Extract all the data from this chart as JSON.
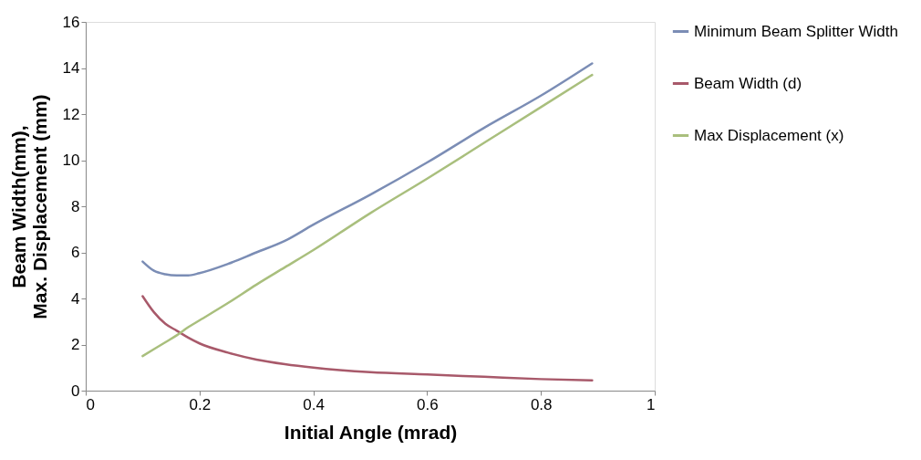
{
  "chart_data": {
    "type": "line",
    "xlabel": "Initial Angle (mrad)",
    "ylabel": "Beam Width(mm),\nMax. Displacement (mm)",
    "x": [
      0.1,
      0.12,
      0.14,
      0.16,
      0.18,
      0.2,
      0.25,
      0.3,
      0.35,
      0.4,
      0.5,
      0.6,
      0.7,
      0.8,
      0.89
    ],
    "series": [
      {
        "name": "Minimum Beam Splitter Width",
        "color": "#7b8db5",
        "values": [
          5.6,
          5.2,
          5.05,
          5.0,
          5.0,
          5.1,
          5.5,
          6.0,
          6.5,
          7.2,
          8.5,
          9.9,
          11.4,
          12.8,
          14.2
        ]
      },
      {
        "name": "Beam Width (d)",
        "color": "#a8596a",
        "values": [
          4.1,
          3.4,
          2.9,
          2.6,
          2.3,
          2.05,
          1.65,
          1.35,
          1.15,
          1.0,
          0.8,
          0.7,
          0.6,
          0.5,
          0.45
        ]
      },
      {
        "name": "Max Displacement (x)",
        "color": "#a9bf7d",
        "values": [
          1.5,
          1.8,
          2.1,
          2.4,
          2.75,
          3.05,
          3.8,
          4.6,
          5.35,
          6.1,
          7.7,
          9.2,
          10.75,
          12.3,
          13.7
        ]
      }
    ],
    "xlim": [
      0,
      1
    ],
    "xticks": [
      0,
      0.2,
      0.4,
      0.6,
      0.8,
      1
    ],
    "ylim": [
      0,
      16
    ],
    "yticks": [
      0,
      2,
      4,
      6,
      8,
      10,
      12,
      14,
      16
    ],
    "grid": false,
    "legend": "right",
    "marker": "none",
    "line_style": "solid"
  }
}
